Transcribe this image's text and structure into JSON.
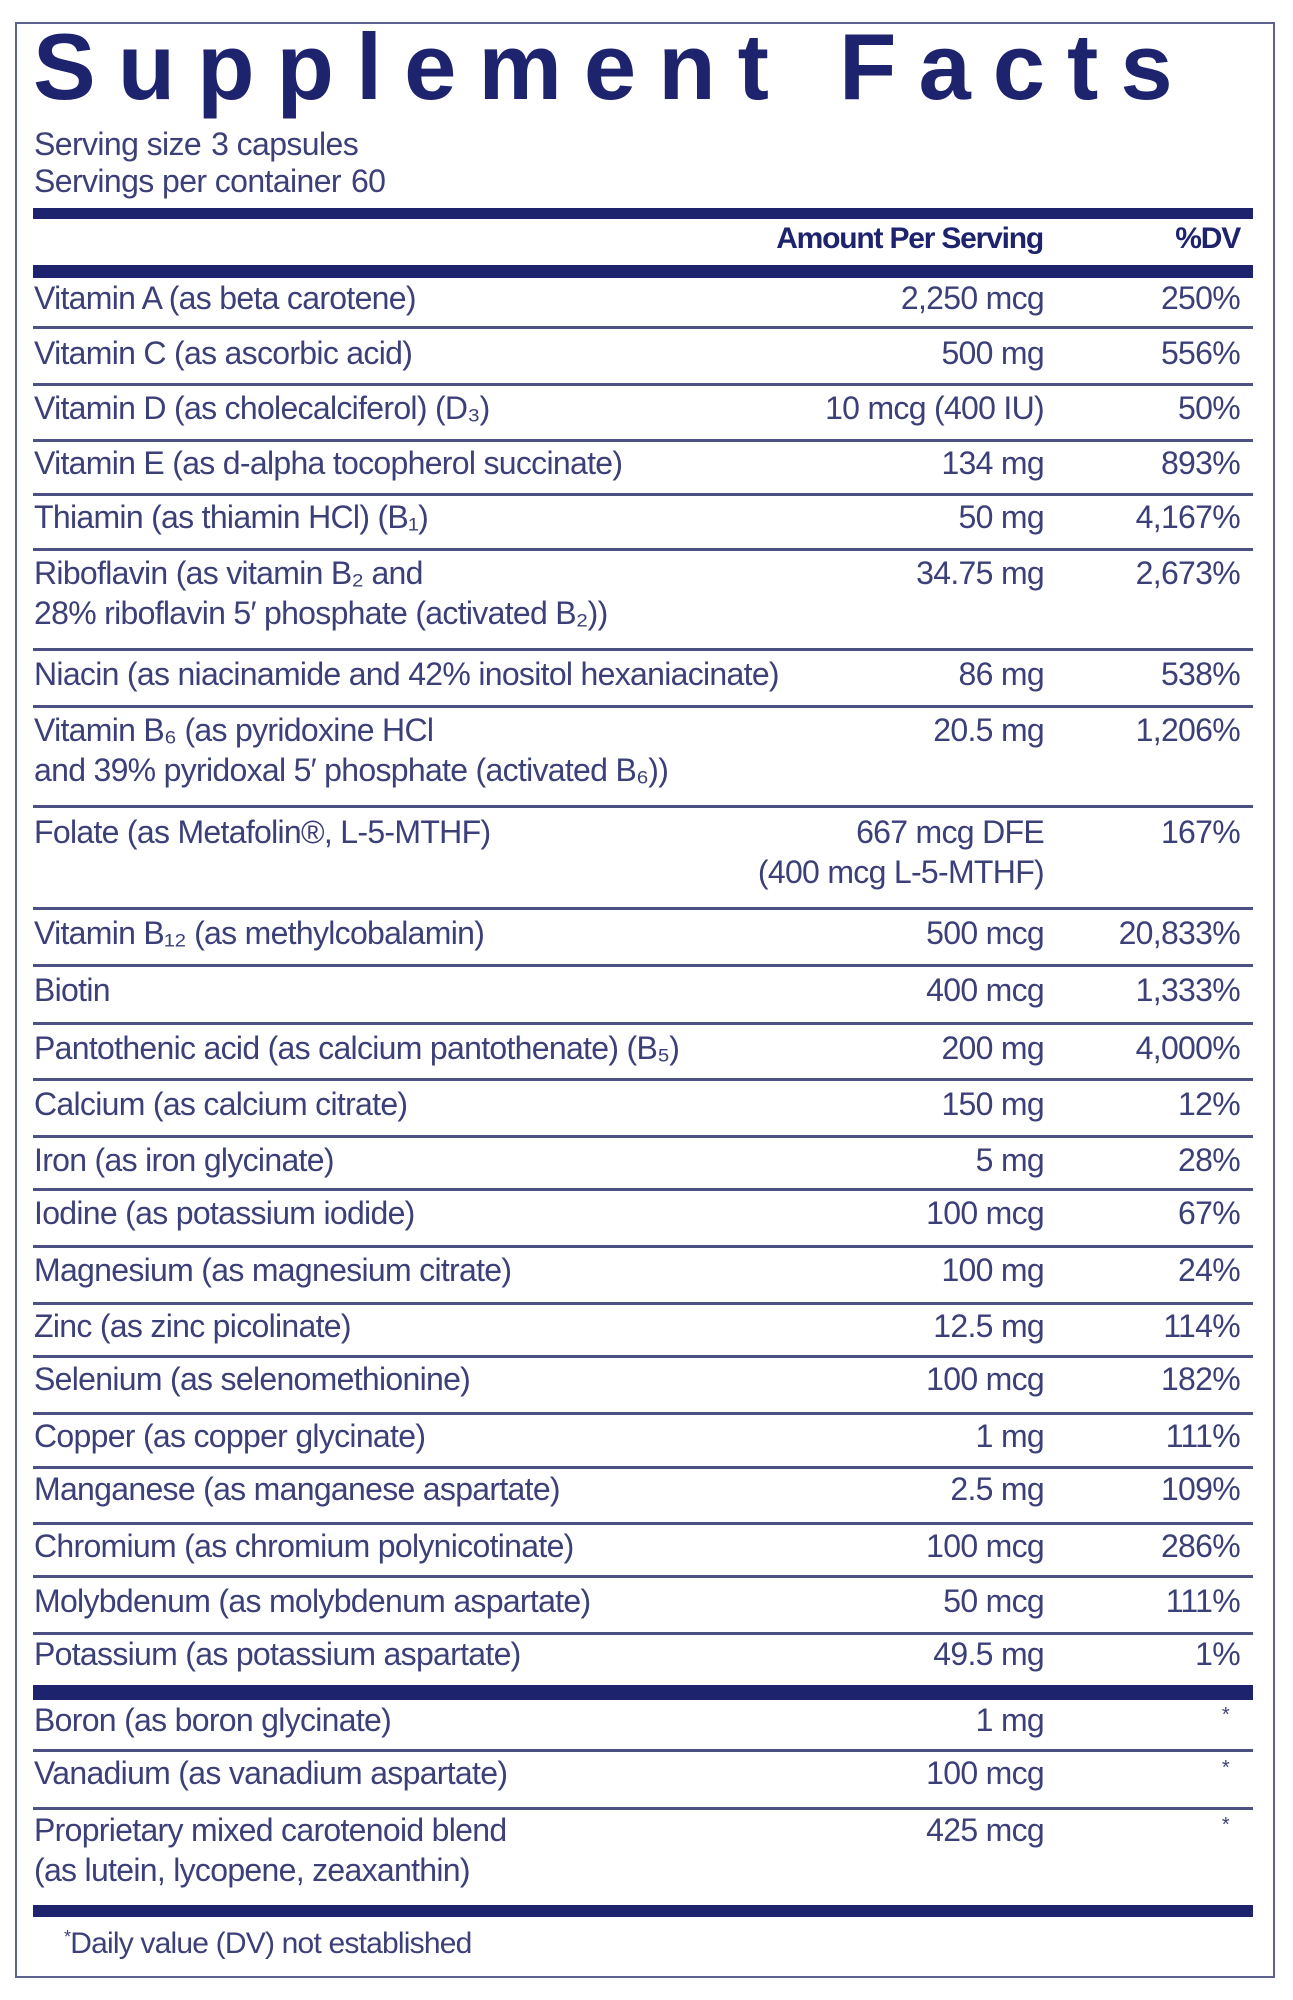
{
  "label": {
    "title": "Supplement Facts",
    "serving_size_label": "Serving size",
    "serving_size_value": "3 capsules",
    "servings_per_container_label": "Servings per container",
    "servings_per_container_value": "60"
  },
  "table": {
    "headers": {
      "amount": "Amount Per Serving",
      "dv": "%DV"
    },
    "rows": [
      {
        "name": "Vitamin A (as beta carotene)",
        "amount": "2,250 mcg",
        "dv": "250%"
      },
      {
        "name": "Vitamin C (as ascorbic acid)",
        "amount": "500 mg",
        "dv": "556%"
      },
      {
        "name": "Vitamin D (as cholecalciferol) (D₃)",
        "amount": "10 mcg (400 IU)",
        "dv": "50%"
      },
      {
        "name": "Vitamin E (as d-alpha tocopherol succinate)",
        "amount": "134 mg",
        "dv": "893%"
      },
      {
        "name": "Thiamin (as thiamin HCl) (B₁)",
        "amount": "50 mg",
        "dv": "4,167%"
      },
      {
        "name": "Riboflavin (as vitamin B₂ and",
        "name2": "28% riboflavin 5′ phosphate (activated B₂))",
        "amount": "34.75 mg",
        "dv": "2,673%"
      },
      {
        "name": "Niacin (as niacinamide and 42% inositol hexaniacinate)",
        "amount": "86 mg",
        "dv": "538%"
      },
      {
        "name": "Vitamin B₆ (as pyridoxine HCl",
        "name2": "and 39% pyridoxal 5′ phosphate (activated B₆))",
        "amount": "20.5 mg",
        "dv": "1,206%"
      },
      {
        "name": "Folate (as Metafolin®, L-5-MTHF)",
        "amount": "667 mcg DFE",
        "amount2": "(400 mcg L-5-MTHF)",
        "dv": "167%"
      },
      {
        "name": "Vitamin B₁₂ (as methylcobalamin)",
        "amount": "500 mcg",
        "dv": "20,833%"
      },
      {
        "name": "Biotin",
        "amount": "400 mcg",
        "dv": "1,333%"
      },
      {
        "name": "Pantothenic acid (as calcium pantothenate) (B₅)",
        "amount": "200 mg",
        "dv": "4,000%"
      },
      {
        "name": "Calcium (as calcium citrate)",
        "amount": "150 mg",
        "dv": "12%"
      },
      {
        "name": "Iron (as iron glycinate)",
        "amount": "5 mg",
        "dv": "28%"
      },
      {
        "name": "Iodine (as potassium iodide)",
        "amount": "100 mcg",
        "dv": "67%"
      },
      {
        "name": "Magnesium (as magnesium citrate)",
        "amount": "100 mg",
        "dv": "24%"
      },
      {
        "name": "Zinc (as zinc picolinate)",
        "amount": "12.5 mg",
        "dv": "114%"
      },
      {
        "name": "Selenium (as selenomethionine)",
        "amount": "100 mcg",
        "dv": "182%"
      },
      {
        "name": "Copper (as copper glycinate)",
        "amount": "1 mg",
        "dv": "111%"
      },
      {
        "name": "Manganese (as manganese aspartate)",
        "amount": "2.5 mg",
        "dv": "109%"
      },
      {
        "name": "Chromium (as chromium polynicotinate)",
        "amount": "100 mcg",
        "dv": "286%"
      },
      {
        "name": "Molybdenum (as molybdenum aspartate)",
        "amount": "50 mcg",
        "dv": "111%"
      },
      {
        "name": "Potassium (as potassium aspartate)",
        "amount": "49.5 mg",
        "dv": "1%"
      }
    ],
    "rows_no_dv": [
      {
        "name": "Boron (as boron glycinate)",
        "amount": "1 mg",
        "dv": "*"
      },
      {
        "name": "Vanadium (as vanadium aspartate)",
        "amount": "100 mcg",
        "dv": "*"
      },
      {
        "name": "Proprietary mixed carotenoid blend",
        "name2": "(as lutein, lycopene, zeaxanthin)",
        "amount": "425 mcg",
        "dv": "*"
      }
    ]
  },
  "footnote": {
    "marker": "*",
    "text": "Daily value (DV) not established"
  },
  "colors": {
    "title": "#1e236e",
    "text": "#3c4078",
    "rule": "#1e236e",
    "thin_rule": "#4c5082",
    "border": "#5e6290"
  }
}
